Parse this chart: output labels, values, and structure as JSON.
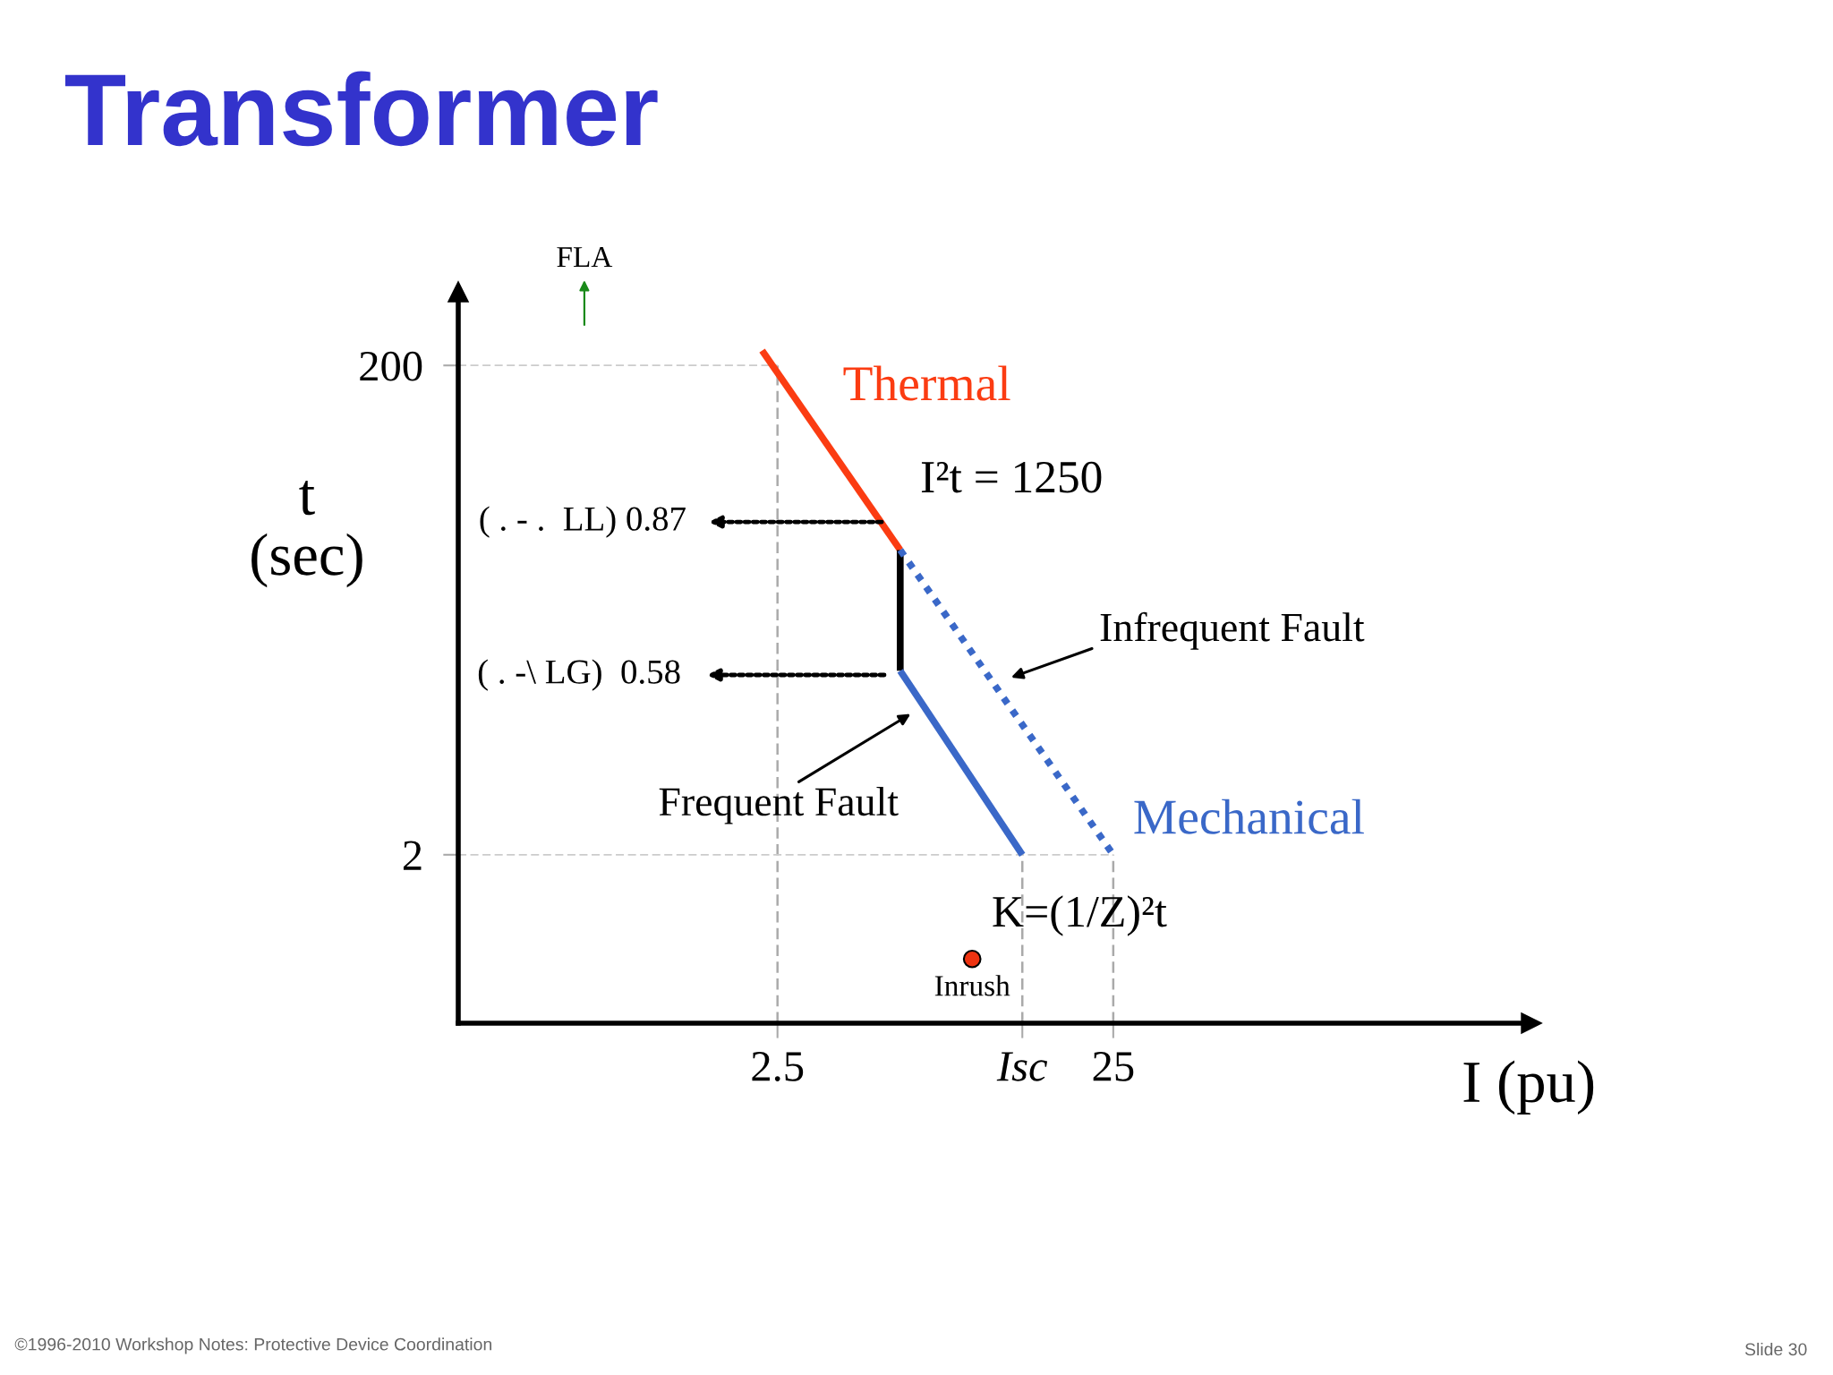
{
  "chart_data": {
    "type": "line",
    "title": "Transformer",
    "xlabel": "I (pu)",
    "ylabel": "t\n(sec)",
    "log": "xy",
    "xlim": [
      0.28,
      440
    ],
    "ylim": [
      0.41,
      400
    ],
    "xticks": [
      2.5,
      {
        "value": 13.4,
        "label": "Isc"
      },
      25
    ],
    "yticks": [
      2,
      200
    ],
    "series": [
      {
        "name": "Thermal",
        "color": "#fb3c12",
        "x": [
          2.25,
          5.8
        ],
        "values": [
          230,
          35.2
        ],
        "line_style": "solid"
      },
      {
        "color": "#000000",
        "x": [
          5.8,
          5.8
        ],
        "values": [
          35.2,
          11.3
        ],
        "line_style": "solid"
      },
      {
        "color": "#3a68c8",
        "x": [
          5.8,
          13.4
        ],
        "values": [
          11.3,
          2
        ],
        "line_style": "solid"
      },
      {
        "name": "Mechanical",
        "color": "#3a68c8",
        "x": [
          5.8,
          25
        ],
        "values": [
          35.2,
          2
        ],
        "line_style": "dotted"
      },
      {
        "name": "Inrush",
        "type": "scatter",
        "color": "#ee3311",
        "x": [
          9.5
        ],
        "values": [
          0.75
        ],
        "marker": "circle"
      }
    ],
    "ref_lines": [
      {
        "axis": "x",
        "value": 2.5,
        "color": "#aaaaaa",
        "line_style": "dashed"
      },
      {
        "axis": "x",
        "value": 13.4,
        "color": "#aaaaaa",
        "line_style": "dashed"
      },
      {
        "axis": "x",
        "value": 25,
        "color": "#aaaaaa",
        "line_style": "dashed"
      },
      {
        "axis": "y",
        "value": 200,
        "color": "#cccccc",
        "line_style": "dashed"
      },
      {
        "axis": "y",
        "value": 2,
        "color": "#cccccc",
        "line_style": "dashed"
      }
    ],
    "annotations": [
      "FLA",
      "( . - .  LL) 0.87",
      "( . -\\ LG)  0.58",
      {
        "text": "Frequent Fault",
        "x": 6.8,
        "y": 8.1
      },
      {
        "text": "Infrequent Fault",
        "x": 11,
        "y": 10
      },
      "I²t = 1250",
      "K=(1/Z)²t",
      "©1996-2010 Workshop Notes: Protective Device Coordination",
      "Slide 30"
    ]
  }
}
